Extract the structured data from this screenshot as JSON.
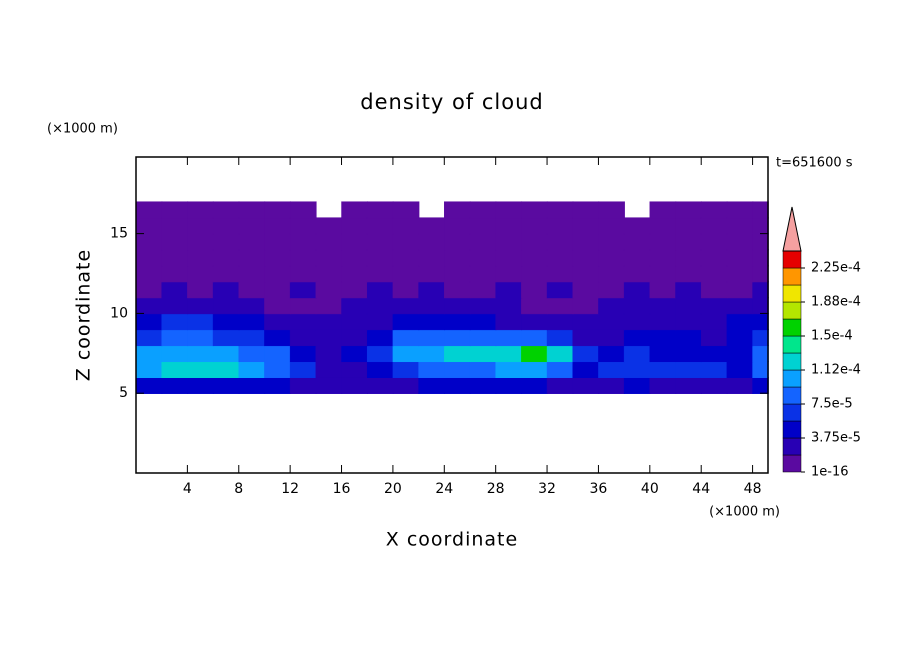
{
  "chart_data": {
    "type": "contour",
    "title": "density of cloud",
    "y_unit": "(×1000 m)",
    "x_unit": "(×1000 m)",
    "time_label": "t=651600 s",
    "xlabel": "X coordinate",
    "ylabel": "Z coordinate",
    "xlim": [
      0,
      49.2
    ],
    "ylim": [
      0,
      19.8
    ],
    "xticks": [
      4,
      8,
      12,
      16,
      20,
      24,
      28,
      32,
      36,
      40,
      44,
      48
    ],
    "yticks": [
      5,
      10,
      15
    ],
    "x": [
      1,
      3,
      5,
      7,
      9,
      11,
      13,
      15,
      17,
      19,
      21,
      23,
      25,
      27,
      29,
      31,
      33,
      35,
      37,
      39,
      41,
      43,
      45,
      47,
      49
    ],
    "y": [
      5.5,
      6.5,
      7.5,
      8.5,
      9.5,
      10.5,
      11.5,
      12.5,
      13.5,
      14.5,
      15.5,
      16.5
    ],
    "z": [
      [
        4e-05,
        5e-05,
        5e-05,
        5e-05,
        4e-05,
        4e-05,
        3e-05,
        2e-05,
        2e-05,
        2e-05,
        3e-05,
        4e-05,
        4e-05,
        4e-05,
        4e-05,
        4e-05,
        3e-05,
        2e-05,
        3e-05,
        4e-05,
        3e-05,
        3e-05,
        3e-05,
        2e-05,
        4e-05
      ],
      [
        0.00011,
        0.00012,
        0.00012,
        0.00012,
        0.0001,
        9e-05,
        7e-05,
        3e-05,
        3e-05,
        5e-05,
        7e-05,
        8e-05,
        9e-05,
        9e-05,
        0.0001,
        0.0001,
        9e-05,
        5e-05,
        6e-05,
        7e-05,
        6e-05,
        6e-05,
        6e-05,
        5e-05,
        8e-05
      ],
      [
        0.0001,
        0.00011,
        0.00011,
        0.0001,
        9e-05,
        8e-05,
        5e-05,
        3e-05,
        4e-05,
        7e-05,
        0.0001,
        0.00011,
        0.00012,
        0.00012,
        0.00013,
        0.00016,
        0.00013,
        7e-05,
        4e-05,
        6e-05,
        5e-05,
        5e-05,
        4e-05,
        5e-05,
        8e-05
      ],
      [
        7e-05,
        8e-05,
        8e-05,
        7e-05,
        6e-05,
        5e-05,
        3e-05,
        2e-05,
        3e-05,
        5e-05,
        8e-05,
        9e-05,
        9e-05,
        9e-05,
        8e-05,
        8e-05,
        6e-05,
        3e-05,
        3e-05,
        4e-05,
        4e-05,
        4e-05,
        3e-05,
        4e-05,
        6e-05
      ],
      [
        5e-05,
        6e-05,
        6e-05,
        5e-05,
        4e-05,
        3e-05,
        2e-05,
        2e-05,
        2e-05,
        3e-05,
        4e-05,
        4e-05,
        4e-05,
        4e-05,
        3e-05,
        3e-05,
        3e-05,
        2e-05,
        3e-05,
        3e-05,
        3e-05,
        3e-05,
        3e-05,
        4e-05,
        5e-05
      ],
      [
        2e-05,
        2e-05,
        2e-05,
        2e-05,
        2e-05,
        1e-05,
        1e-05,
        1e-05,
        2e-05,
        2e-05,
        2e-05,
        2e-05,
        2e-05,
        2e-05,
        2e-05,
        1e-05,
        1e-05,
        1e-05,
        2e-05,
        2e-05,
        2e-05,
        2e-05,
        2e-05,
        2e-05,
        2e-05
      ],
      [
        1e-05,
        2e-05,
        1e-05,
        2e-05,
        1e-05,
        1e-05,
        2e-05,
        1e-05,
        1e-05,
        2e-05,
        1e-05,
        2e-05,
        1e-05,
        1e-05,
        2e-05,
        1e-05,
        2e-05,
        1e-05,
        1e-05,
        2e-05,
        1e-05,
        2e-05,
        1e-05,
        1e-05,
        2e-05
      ],
      [
        1e-05,
        1e-05,
        1e-05,
        1e-05,
        1e-05,
        1e-05,
        1e-05,
        1e-05,
        1e-05,
        1e-05,
        1e-05,
        1e-05,
        1e-05,
        1e-05,
        1e-05,
        1e-05,
        1e-05,
        1e-05,
        1e-05,
        1e-05,
        1e-05,
        1e-05,
        1e-05,
        1e-05,
        1e-05
      ],
      [
        1e-05,
        1e-05,
        1e-05,
        1e-05,
        1e-05,
        1e-05,
        1e-05,
        1e-05,
        1e-05,
        1e-05,
        1e-05,
        1e-05,
        1e-05,
        1e-05,
        1e-05,
        1e-05,
        1e-05,
        1e-05,
        1e-05,
        1e-05,
        1e-05,
        1e-05,
        1e-05,
        1e-05,
        1e-05
      ],
      [
        1e-05,
        1e-05,
        1e-05,
        1e-05,
        1e-05,
        1e-05,
        1e-05,
        1e-05,
        1e-05,
        1e-05,
        1e-05,
        1e-05,
        1e-05,
        1e-05,
        1e-05,
        1e-05,
        1e-05,
        1e-05,
        1e-05,
        1e-05,
        1e-05,
        1e-05,
        1e-05,
        1e-05,
        1e-05
      ],
      [
        1e-05,
        1e-05,
        1e-05,
        1e-05,
        1e-05,
        1e-05,
        1e-05,
        1e-05,
        1e-05,
        1e-05,
        1e-05,
        1e-05,
        1e-05,
        1e-05,
        1e-05,
        1e-05,
        1e-05,
        1e-05,
        1e-05,
        1e-05,
        1e-05,
        1e-05,
        1e-05,
        1e-05,
        1e-05
      ],
      [
        1e-05,
        1e-05,
        1e-05,
        1e-05,
        1e-05,
        1e-05,
        1e-05,
        null,
        1e-05,
        1e-05,
        1e-05,
        null,
        1e-05,
        1e-05,
        1e-05,
        1e-05,
        1e-05,
        1e-05,
        1e-05,
        null,
        1e-05,
        1e-05,
        1e-05,
        1e-05,
        1e-05
      ]
    ],
    "levels": [
      1e-16,
      1.875e-05,
      3.75e-05,
      5.625e-05,
      7.5e-05,
      9.375e-05,
      0.0001125,
      0.00013125,
      0.00015,
      0.00016875,
      0.0001875,
      0.00020625,
      0.000225,
      0.00024375
    ],
    "colors": [
      "#5a0aa0",
      "#2800b4",
      "#0000c8",
      "#0a32e6",
      "#1464ff",
      "#0aa0ff",
      "#00d2d2",
      "#00e68c",
      "#00d200",
      "#b4e600",
      "#f0e600",
      "#ff9600",
      "#e60000"
    ],
    "extend_color": "#f5a0a0",
    "colorbar_ticks": [
      {
        "value": 1e-16,
        "label": "1e-16"
      },
      {
        "value": 3.75e-05,
        "label": "3.75e-5"
      },
      {
        "value": 7.5e-05,
        "label": "7.5e-5"
      },
      {
        "value": 0.0001125,
        "label": "1.12e-4"
      },
      {
        "value": 0.00015,
        "label": "1.5e-4"
      },
      {
        "value": 0.0001875,
        "label": "1.88e-4"
      },
      {
        "value": 0.000225,
        "label": "2.25e-4"
      }
    ]
  }
}
